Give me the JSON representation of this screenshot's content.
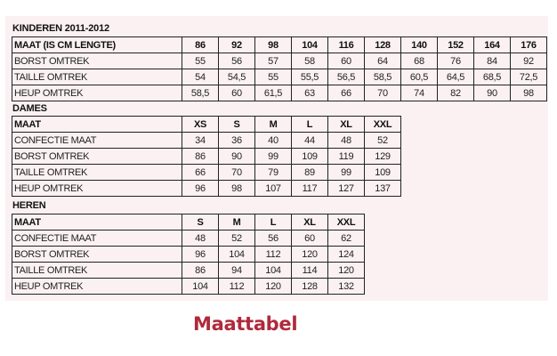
{
  "kinderen": {
    "title": "KINDEREN 2011-2012",
    "header": [
      "MAAT (IS CM LENGTE)",
      "86",
      "92",
      "98",
      "104",
      "116",
      "128",
      "140",
      "152",
      "164",
      "176"
    ],
    "rows": [
      [
        "BORST OMTREK",
        "55",
        "56",
        "57",
        "58",
        "60",
        "64",
        "68",
        "76",
        "84",
        "92"
      ],
      [
        "TAILLE OMTREK",
        "54",
        "54,5",
        "55",
        "55,5",
        "56,5",
        "58,5",
        "60,5",
        "64,5",
        "68,5",
        "72,5"
      ],
      [
        "HEUP OMTREK",
        "58,5",
        "60",
        "61,5",
        "63",
        "66",
        "70",
        "74",
        "82",
        "90",
        "98"
      ]
    ]
  },
  "dames": {
    "title": "DAMES",
    "header": [
      "MAAT",
      "XS",
      "S",
      "M",
      "L",
      "XL",
      "XXL"
    ],
    "rows": [
      [
        "CONFECTIE MAAT",
        "34",
        "36",
        "40",
        "44",
        "48",
        "52"
      ],
      [
        "BORST OMTREK",
        "86",
        "90",
        "99",
        "109",
        "119",
        "129"
      ],
      [
        "TAILLE OMTREK",
        "66",
        "70",
        "79",
        "89",
        "99",
        "109"
      ],
      [
        "HEUP OMTREK",
        "96",
        "98",
        "107",
        "117",
        "127",
        "137"
      ]
    ]
  },
  "heren": {
    "title": "HEREN",
    "header": [
      "MAAT",
      "S",
      "M",
      "L",
      "XL",
      "XXL"
    ],
    "rows": [
      [
        "CONFECTIE MAAT",
        "48",
        "52",
        "56",
        "60",
        "62"
      ],
      [
        "BORST OMTREK",
        "96",
        "104",
        "112",
        "120",
        "124"
      ],
      [
        "TAILLE OMTREK",
        "86",
        "94",
        "104",
        "114",
        "120"
      ],
      [
        "HEUP OMTREK",
        "104",
        "112",
        "120",
        "128",
        "132"
      ]
    ]
  },
  "caption": "Maattabel",
  "colors": {
    "caption": "#b02a3c",
    "panel": "#fbf1f3"
  }
}
